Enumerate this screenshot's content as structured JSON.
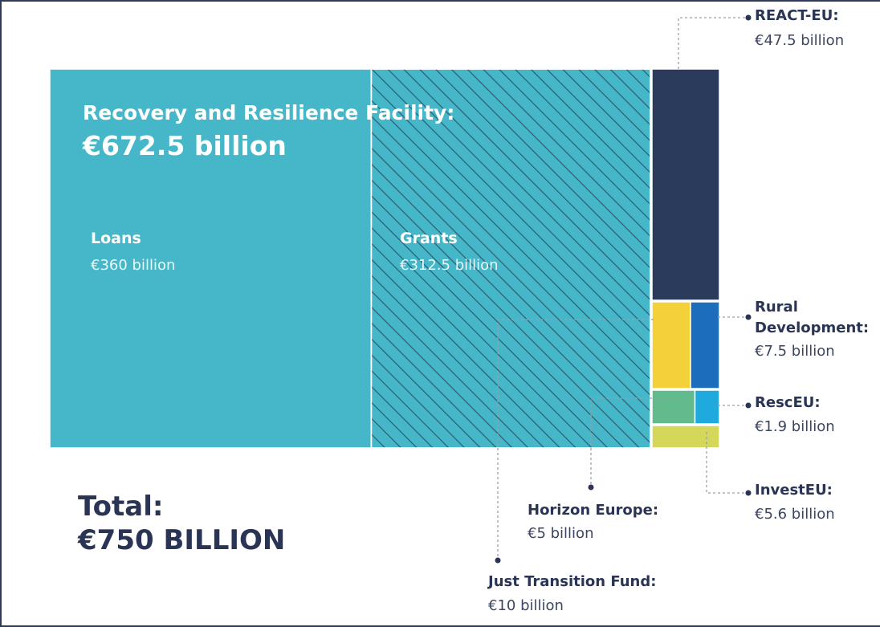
{
  "chart_data": {
    "type": "treemap",
    "total": {
      "label": "Total:",
      "value_text": "€750 BILLION",
      "value": 750
    },
    "rrf": {
      "label": "Recovery and Resilience Facility:",
      "value_text": "€672.5 billion",
      "value": 672.5,
      "parts": [
        {
          "name": "Loans",
          "value": 360,
          "value_text": "€360 billion",
          "color": "#45b7c8",
          "hatched": false
        },
        {
          "name": "Grants",
          "value": 312.5,
          "value_text": "€312.5 billion",
          "color": "#45b7c8",
          "hatched": true
        }
      ]
    },
    "programmes": [
      {
        "name": "REACT-EU:",
        "value": 47.5,
        "value_text": "€47.5 billion",
        "color": "#2b3b5c"
      },
      {
        "name": "Rural Development:",
        "value": 7.5,
        "value_text": "€7.5 billion",
        "color": "#1d6dbd"
      },
      {
        "name": "RescEU:",
        "value": 1.9,
        "value_text": "€1.9 billion",
        "color": "#1fa9dc"
      },
      {
        "name": "InvestEU:",
        "value": 5.6,
        "value_text": "€5.6 billion",
        "color": "#d4d75a"
      },
      {
        "name": "Horizon Europe:",
        "value": 5,
        "value_text": "€5 billion",
        "color": "#62bb8d"
      },
      {
        "name": "Just Transition Fund:",
        "value": 10,
        "value_text": "€10 billion",
        "color": "#f4d13b"
      }
    ]
  }
}
